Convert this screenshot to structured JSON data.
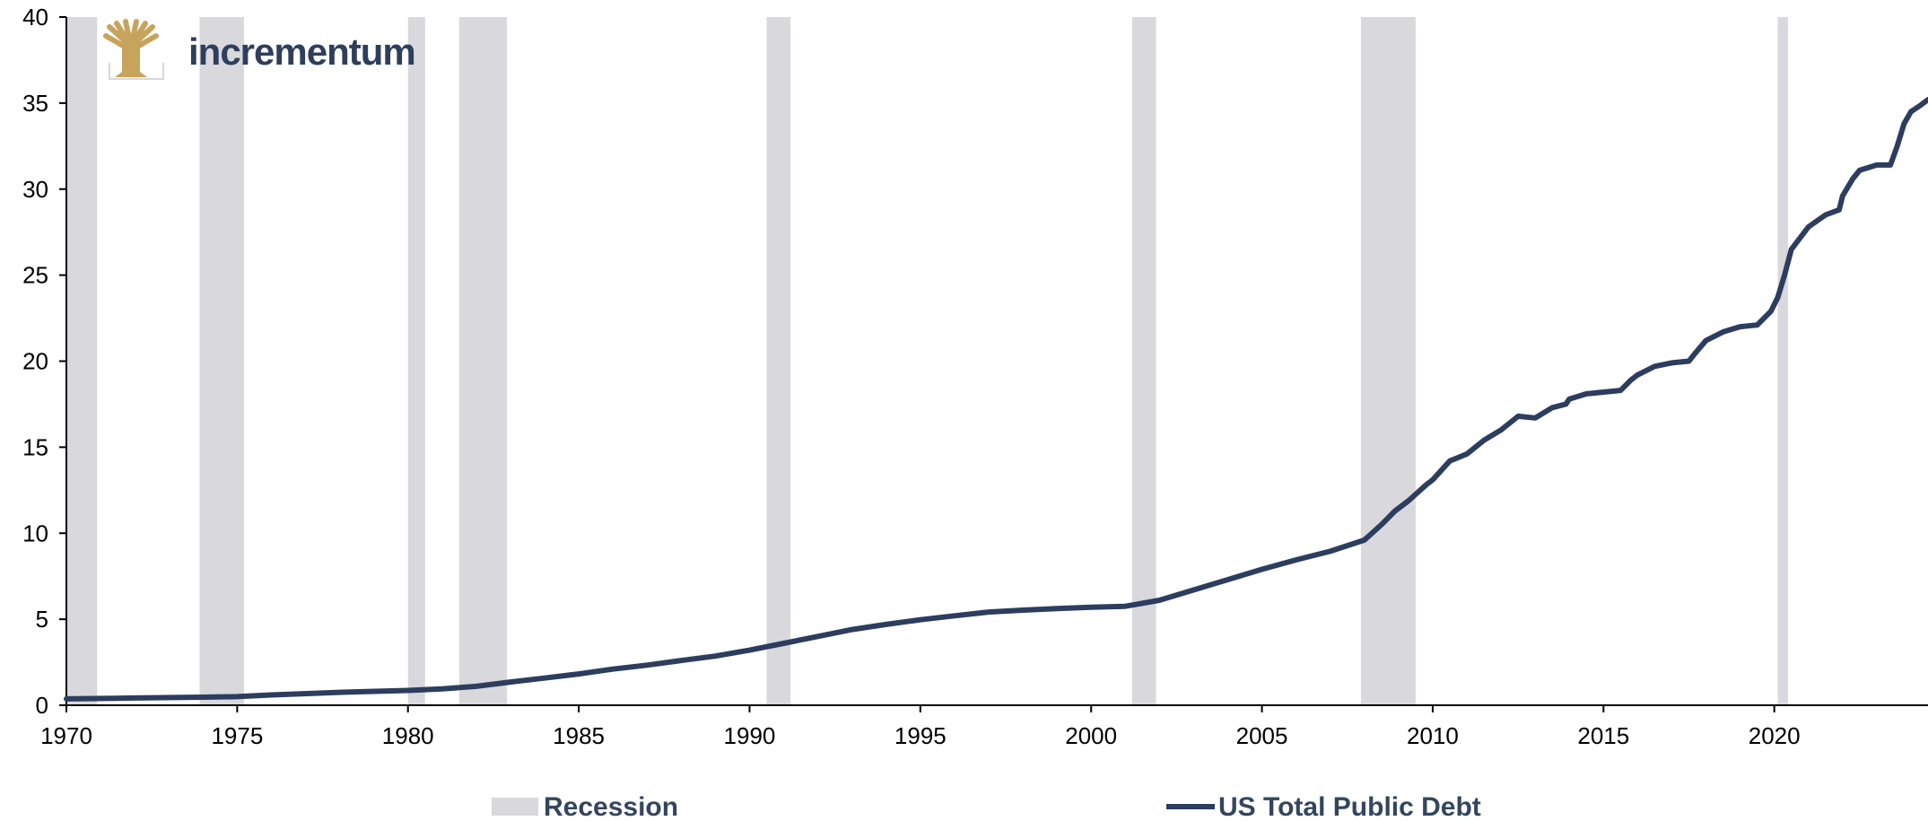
{
  "brand": {
    "name": "incrementum",
    "logo_icon": "tree-logo-icon",
    "logo_color": "#c7a45c",
    "text_color": "#2e3e5c"
  },
  "chart_data": {
    "type": "line",
    "title": "",
    "xlabel": "",
    "ylabel": "",
    "xlim": [
      1970,
      2024.5
    ],
    "ylim": [
      0,
      40
    ],
    "x_ticks": [
      1970,
      1975,
      1980,
      1985,
      1990,
      1995,
      2000,
      2005,
      2010,
      2015,
      2020
    ],
    "y_ticks": [
      0,
      5,
      10,
      15,
      20,
      25,
      30,
      35,
      40
    ],
    "grid": false,
    "legend_position": "bottom",
    "recession_color": "#d9d8dc",
    "line_color": "#2d3d5f",
    "recessions": {
      "name": "Recession",
      "periods": [
        [
          1970.0,
          1970.9
        ],
        [
          1973.9,
          1975.2
        ],
        [
          1980.0,
          1980.5
        ],
        [
          1981.5,
          1982.9
        ],
        [
          1990.5,
          1991.2
        ],
        [
          2001.2,
          2001.9
        ],
        [
          2007.9,
          2009.5
        ],
        [
          2020.1,
          2020.4
        ]
      ]
    },
    "series": [
      {
        "name": "US Total Public Debt",
        "x": [
          1970,
          1972,
          1974,
          1975,
          1976,
          1978,
          1980,
          1981,
          1982,
          1983,
          1984,
          1985,
          1986,
          1987,
          1988,
          1989,
          1990,
          1991,
          1992,
          1993,
          1994,
          1995,
          1996,
          1997,
          1998,
          1999,
          2000,
          2001,
          2002,
          2003,
          2004,
          2005,
          2006,
          2007,
          2008,
          2008.5,
          2008.9,
          2009.3,
          2009.8,
          2010,
          2010.5,
          2011,
          2011.5,
          2012,
          2012.5,
          2013,
          2013.5,
          2013.9,
          2014,
          2014.5,
          2015,
          2015.5,
          2015.8,
          2016,
          2016.5,
          2017,
          2017.5,
          2017.7,
          2018,
          2018.5,
          2019,
          2019.5,
          2019.9,
          2020,
          2020.1,
          2020.3,
          2020.5,
          2021,
          2021.5,
          2021.9,
          2022,
          2022.3,
          2022.5,
          2023,
          2023.4,
          2023.6,
          2023.8,
          2024,
          2024.3,
          2024.5
        ],
        "values": [
          0.37,
          0.42,
          0.47,
          0.5,
          0.6,
          0.75,
          0.86,
          0.95,
          1.1,
          1.35,
          1.58,
          1.82,
          2.1,
          2.33,
          2.6,
          2.86,
          3.2,
          3.6,
          4.0,
          4.4,
          4.7,
          4.97,
          5.2,
          5.42,
          5.53,
          5.62,
          5.7,
          5.75,
          6.1,
          6.7,
          7.3,
          7.9,
          8.45,
          8.95,
          9.6,
          10.5,
          11.3,
          11.9,
          12.8,
          13.1,
          14.2,
          14.6,
          15.4,
          16.0,
          16.8,
          16.7,
          17.3,
          17.5,
          17.8,
          18.1,
          18.2,
          18.3,
          18.9,
          19.2,
          19.7,
          19.9,
          20.0,
          20.5,
          21.2,
          21.7,
          22.0,
          22.1,
          22.9,
          23.3,
          23.7,
          25.0,
          26.5,
          27.8,
          28.5,
          28.8,
          29.6,
          30.6,
          31.1,
          31.4,
          31.4,
          32.5,
          33.8,
          34.5,
          34.9,
          35.2
        ]
      }
    ]
  }
}
